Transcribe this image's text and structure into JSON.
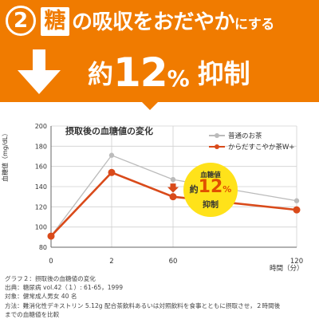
{
  "banner": {
    "step_number": "2",
    "sugar_kanji": "糖",
    "headline_no": "の",
    "headline_main": "吸収を",
    "headline_end": "おだやか",
    "headline_small": "にする",
    "about": "約",
    "percent": "12",
    "percent_sign": "%",
    "suppression": "抑制",
    "colors": {
      "orange": "#f07b00",
      "white": "#ffffff"
    }
  },
  "chart_data": {
    "type": "line",
    "title": "摂取後の血糖値の変化",
    "ylabel": "血糖値（mg/dL）",
    "xlabel": "時間（分）",
    "x": [
      0,
      2,
      60,
      120
    ],
    "x_tick_labels": [
      "0",
      "2",
      "60",
      "120"
    ],
    "ylim": [
      80,
      200
    ],
    "y_ticks": [
      80,
      100,
      120,
      140,
      160,
      180,
      200
    ],
    "legend_position": "top-right",
    "series": [
      {
        "name": "普通のお茶",
        "color": "#bbbbbb",
        "values": [
          91,
          171,
          147,
          126
        ]
      },
      {
        "name": "からだすこやか茶W+",
        "color": "#d94a1a",
        "values": [
          91,
          154,
          130,
          117
        ]
      }
    ],
    "annotation": {
      "line1": "血糖値",
      "about": "約",
      "value": "12",
      "unit": "%",
      "line3": "抑制",
      "color": "#ffe21a"
    }
  },
  "notes": {
    "graph_caption": "グラフ２：摂取後の血糖値の変化",
    "source": "出典：糖尿病 vol.42（１）: 61-65，1999",
    "subjects": "対象：健常成人男女 40 名",
    "method_1": "方法：難消化性デキストリン 5.12g 配合茶飲料あるいは対照飲料を食事とともに摂取させ，２時間後",
    "method_2": "までの血糖値を比較"
  },
  "icons": {
    "down_arrow": "down-arrow-icon",
    "highlight_arrow": "red-down-arrow-icon"
  }
}
